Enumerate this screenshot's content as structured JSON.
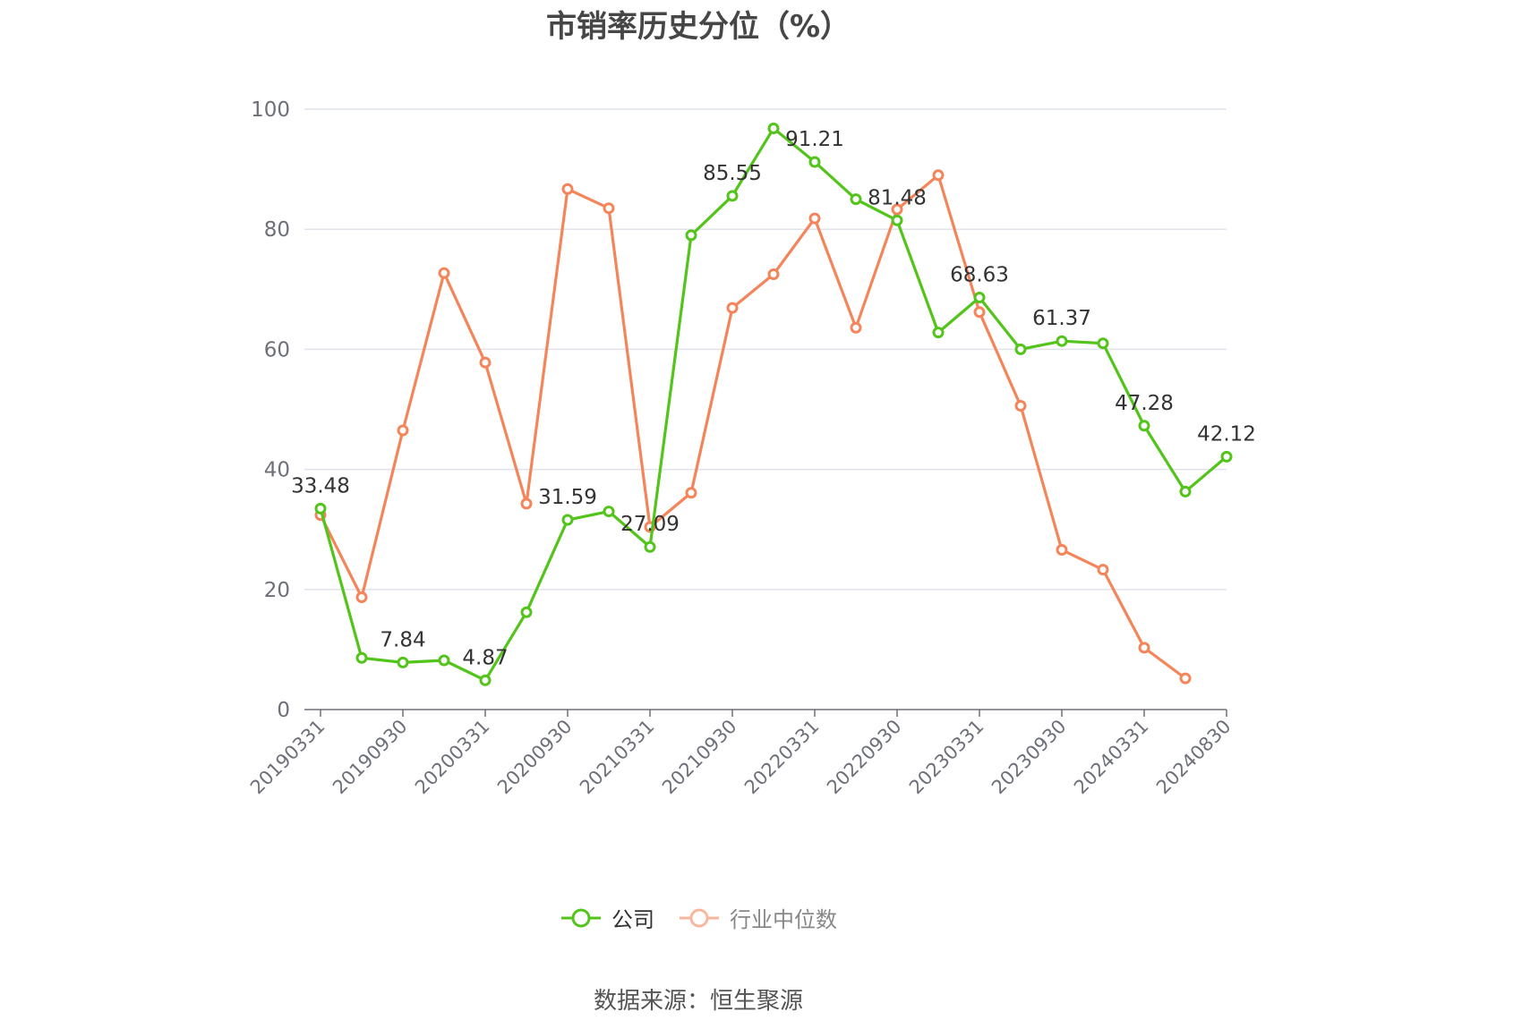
{
  "title": "市销率历史分位（%）",
  "source": "数据来源：恒生聚源",
  "legend": [
    {
      "label": "公司",
      "color": "#52c41a"
    },
    {
      "label": "行业中位数",
      "color": "#f4855a"
    }
  ],
  "chart_data": {
    "type": "line",
    "ylim": [
      0,
      100
    ],
    "yticks": [
      0,
      20,
      40,
      60,
      80,
      100
    ],
    "grid": true,
    "legend_position": "bottom",
    "x": [
      "20190331",
      "20190630",
      "20190930",
      "20191231",
      "20200331",
      "20200630",
      "20200930",
      "20201231",
      "20210331",
      "20210630",
      "20210930",
      "20211231",
      "20220331",
      "20220630",
      "20220930",
      "20221231",
      "20230331",
      "20230630",
      "20230930",
      "20231231",
      "20240331",
      "20240630",
      "20240830"
    ],
    "xtick_labels": [
      "20190331",
      "20190930",
      "20200331",
      "20200930",
      "20210331",
      "20210930",
      "20220331",
      "20220930",
      "20230331",
      "20230930",
      "20240331",
      "20240830"
    ],
    "series": [
      {
        "name": "公司",
        "color": "#52c41a",
        "values": [
          33.48,
          8.6,
          7.84,
          8.2,
          4.87,
          16.2,
          31.59,
          33.0,
          27.09,
          79.0,
          85.55,
          96.8,
          91.21,
          85.0,
          81.48,
          62.8,
          68.63,
          60.0,
          61.37,
          61.0,
          47.28,
          36.3,
          42.12
        ]
      },
      {
        "name": "行业中位数",
        "color": "#f4855a",
        "values": [
          32.4,
          18.7,
          46.5,
          72.7,
          57.8,
          34.3,
          86.7,
          83.5,
          30.4,
          36.1,
          66.9,
          72.5,
          81.8,
          63.6,
          83.3,
          89.0,
          66.2,
          50.6,
          26.6,
          23.3,
          10.3,
          5.2,
          null
        ]
      }
    ],
    "data_labels": [
      {
        "index": 0,
        "text": "33.48"
      },
      {
        "index": 2,
        "text": "7.84"
      },
      {
        "index": 4,
        "text": "4.87"
      },
      {
        "index": 6,
        "text": "31.59"
      },
      {
        "index": 8,
        "text": "27.09"
      },
      {
        "index": 10,
        "text": "85.55"
      },
      {
        "index": 12,
        "text": "91.21"
      },
      {
        "index": 14,
        "text": "81.48"
      },
      {
        "index": 16,
        "text": "68.63"
      },
      {
        "index": 18,
        "text": "61.37"
      },
      {
        "index": 20,
        "text": "47.28"
      },
      {
        "index": 22,
        "text": "42.12"
      }
    ]
  }
}
